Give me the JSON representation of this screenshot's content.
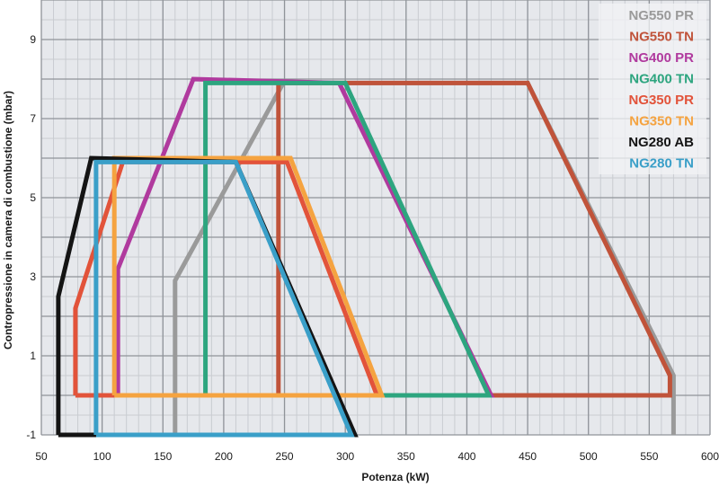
{
  "chart_data": {
    "type": "line",
    "xlabel": "Potenza (kW)",
    "ylabel": "Contropressione in camera di combustione (mbar)",
    "xlim": [
      50,
      600
    ],
    "ylim": [
      -1,
      10
    ],
    "x_ticks": [
      50,
      100,
      150,
      200,
      250,
      300,
      350,
      400,
      450,
      500,
      550,
      600
    ],
    "y_ticks": [
      -1,
      1,
      3,
      5,
      7,
      9
    ],
    "grid": true,
    "legend_position": "top-right",
    "series": [
      {
        "name": "NG550 PR",
        "color": "#9a9a9a",
        "points": [
          [
            160,
            -1
          ],
          [
            160,
            2.9
          ],
          [
            249,
            7.9
          ],
          [
            450,
            7.9
          ],
          [
            570,
            0.5
          ],
          [
            570,
            -1
          ]
        ]
      },
      {
        "name": "NG550 TN",
        "color": "#c0533a",
        "points": [
          [
            245,
            0
          ],
          [
            245,
            7.9
          ],
          [
            450,
            7.9
          ],
          [
            567,
            0.5
          ],
          [
            567,
            0
          ],
          [
            245,
            0
          ]
        ]
      },
      {
        "name": "NG400 PR",
        "color": "#b03a9e",
        "points": [
          [
            113,
            0
          ],
          [
            113,
            3.2
          ],
          [
            175,
            8
          ],
          [
            295,
            7.9
          ],
          [
            420,
            0
          ],
          [
            113,
            0
          ]
        ]
      },
      {
        "name": "NG400 TN",
        "color": "#2da57f",
        "points": [
          [
            185,
            0
          ],
          [
            185,
            7.9
          ],
          [
            300,
            7.9
          ],
          [
            418,
            0
          ],
          [
            185,
            0
          ]
        ]
      },
      {
        "name": "NG350 PR",
        "color": "#e2533a",
        "points": [
          [
            78,
            0
          ],
          [
            78,
            2.2
          ],
          [
            117,
            5.9
          ],
          [
            252,
            5.9
          ],
          [
            326,
            0
          ],
          [
            78,
            0
          ]
        ]
      },
      {
        "name": "NG350 TN",
        "color": "#f5a340",
        "points": [
          [
            110,
            0
          ],
          [
            110,
            6
          ],
          [
            255,
            6
          ],
          [
            330,
            0
          ],
          [
            110,
            0
          ]
        ]
      },
      {
        "name": "NG280 AB",
        "color": "#141414",
        "points": [
          [
            64,
            -1
          ],
          [
            64,
            2.5
          ],
          [
            91,
            6
          ],
          [
            210,
            5.9
          ],
          [
            308,
            -1
          ],
          [
            64,
            -1
          ]
        ]
      },
      {
        "name": "NG280 TN",
        "color": "#3a9fc8",
        "points": [
          [
            95,
            -1
          ],
          [
            95,
            5.9
          ],
          [
            210,
            5.9
          ],
          [
            305,
            -1
          ],
          [
            95,
            -1
          ]
        ]
      }
    ]
  }
}
